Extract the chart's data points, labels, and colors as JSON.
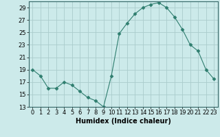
{
  "x": [
    0,
    1,
    2,
    3,
    4,
    5,
    6,
    7,
    8,
    9,
    10,
    11,
    12,
    13,
    14,
    15,
    16,
    17,
    18,
    19,
    20,
    21,
    22,
    23
  ],
  "y": [
    19,
    18,
    16,
    16,
    17,
    16.5,
    15.5,
    14.5,
    14,
    13,
    18,
    24.8,
    26.5,
    28,
    29,
    29.5,
    29.8,
    29,
    27.5,
    25.5,
    23,
    22,
    19,
    17.5
  ],
  "line_color": "#2e7d6e",
  "marker": "D",
  "marker_size": 2.5,
  "bg_color": "#cceaea",
  "grid_color": "#aacccc",
  "xlabel": "Humidex (Indice chaleur)",
  "xlim": [
    -0.5,
    23.5
  ],
  "ylim": [
    13,
    30
  ],
  "yticks": [
    13,
    15,
    17,
    19,
    21,
    23,
    25,
    27,
    29
  ],
  "xticks": [
    0,
    1,
    2,
    3,
    4,
    5,
    6,
    7,
    8,
    9,
    10,
    11,
    12,
    13,
    14,
    15,
    16,
    17,
    18,
    19,
    20,
    21,
    22,
    23
  ],
  "xlabel_fontsize": 7,
  "tick_fontsize": 6
}
